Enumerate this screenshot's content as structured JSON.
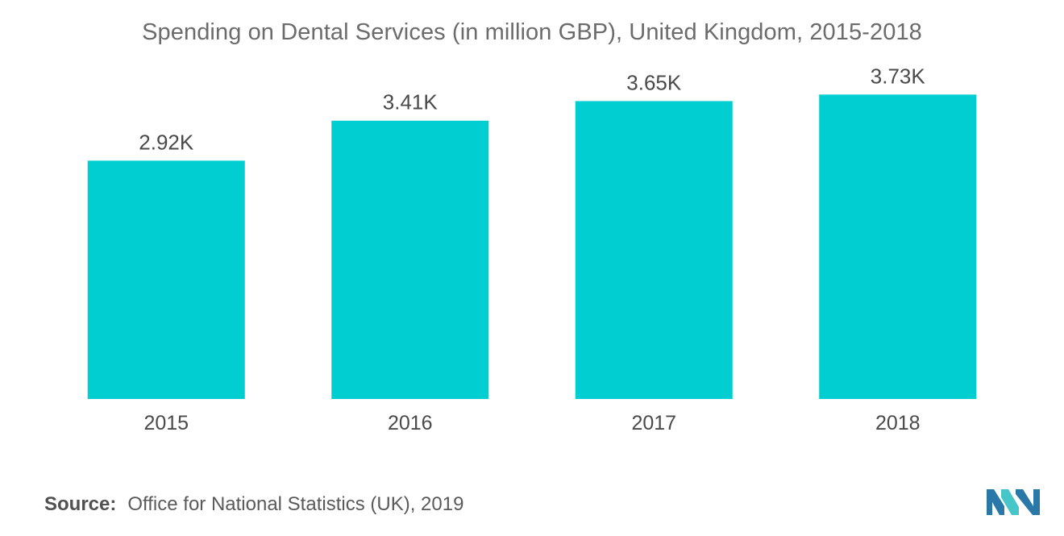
{
  "chart_data": {
    "type": "bar",
    "title": "Spending on Dental Services (in million GBP), United Kingdom, 2015-2018",
    "categories": [
      "2015",
      "2016",
      "2017",
      "2018"
    ],
    "values": [
      2920,
      3410,
      3650,
      3730
    ],
    "data_labels": [
      "2.92K",
      "3.41K",
      "3.65K",
      "3.73K"
    ],
    "xlabel": "",
    "ylabel": "",
    "ylim": [
      0,
      4000
    ],
    "grid": false,
    "legend": "none",
    "bar_color": "#00ced1"
  },
  "source": {
    "label": "Source:",
    "text": "Office for National Statistics (UK), 2019"
  },
  "logo": {
    "icon": "mordor-intelligence-logo",
    "colors": [
      "#2a78a8",
      "#46c6c8"
    ]
  }
}
